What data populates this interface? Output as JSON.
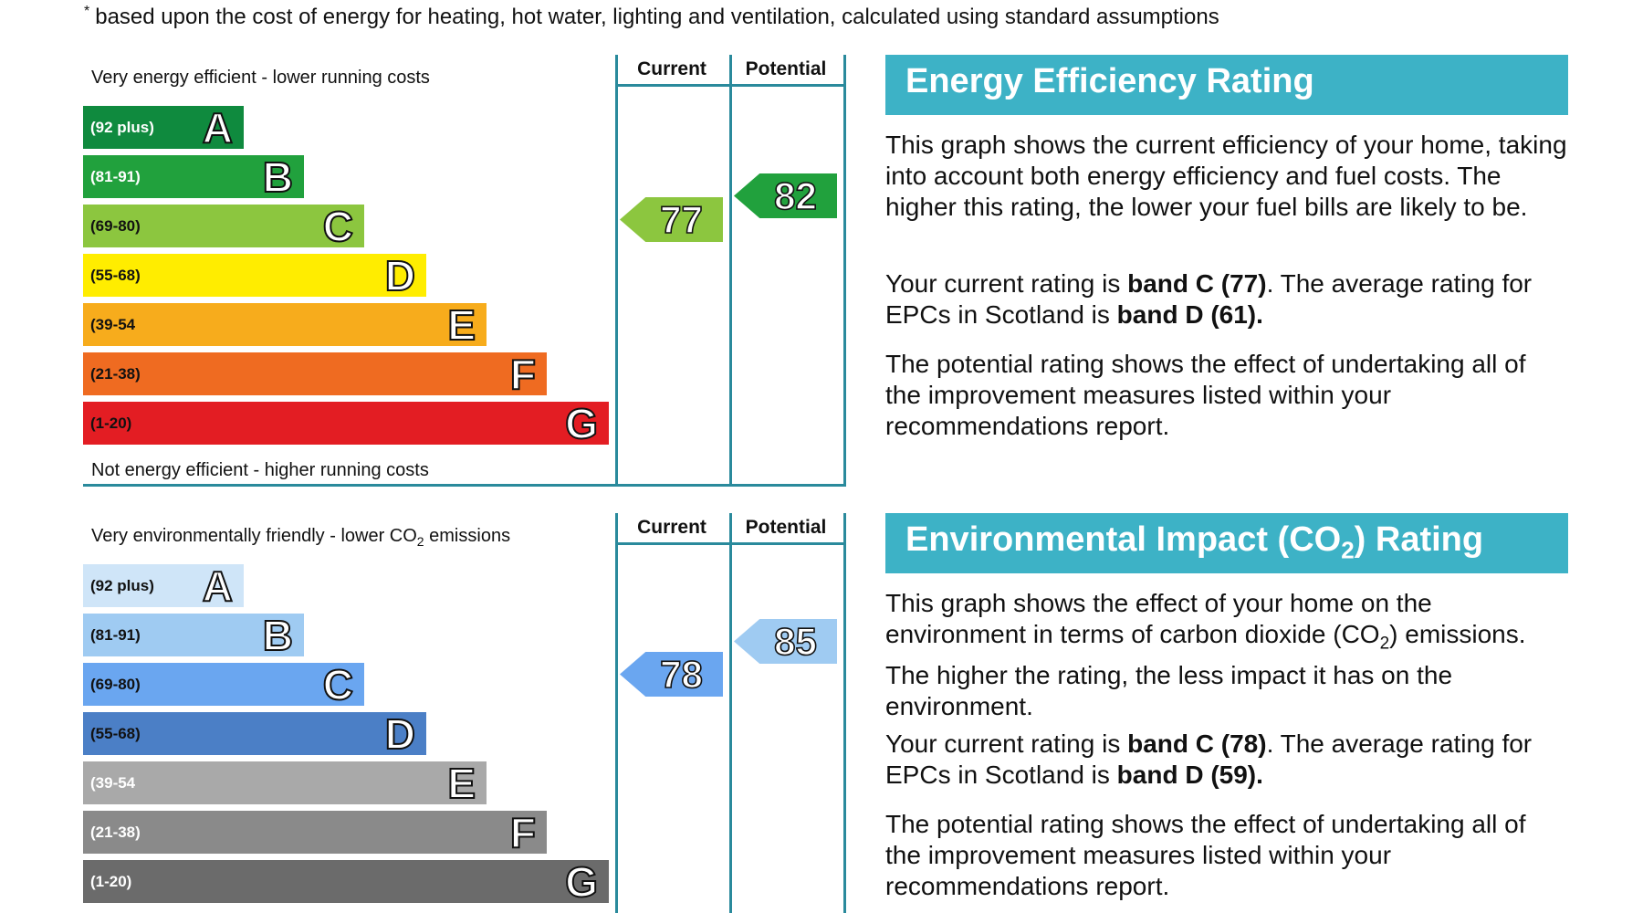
{
  "footnote": {
    "mark": "*",
    "text": "based upon the cost of energy for heating, hot water, lighting and ventilation, calculated using standard assumptions"
  },
  "colors": {
    "teal_line": "#2a8a9c",
    "header_bg": "#3db2c6",
    "eer": [
      "#0f8a3e",
      "#21a13d",
      "#8cc63f",
      "#ffed00",
      "#f7ac1c",
      "#ef6b21",
      "#e31d23"
    ],
    "ei": [
      "#cfe5f8",
      "#9fcbf2",
      "#6aa6f0",
      "#4b7fc6",
      "#a9a9a9",
      "#8a8a8a",
      "#6b6b6b"
    ]
  },
  "energy": {
    "top_note": "Very energy efficient - lower running costs",
    "bottom_note": "Not energy efficient - higher running costs",
    "col_current": "Current",
    "col_potential": "Potential",
    "bands": [
      {
        "range": "(92 plus)",
        "letter": "A"
      },
      {
        "range": "(81-91)",
        "letter": "B"
      },
      {
        "range": "(69-80)",
        "letter": "C"
      },
      {
        "range": "(55-68)",
        "letter": "D"
      },
      {
        "range": "(39-54",
        "letter": "E"
      },
      {
        "range": "(21-38)",
        "letter": "F"
      },
      {
        "range": "(1-20)",
        "letter": "G"
      }
    ],
    "current": "77",
    "potential": "82",
    "title": "Energy Efficiency Rating",
    "p1": "This graph shows the current efficiency of your home, taking into account both energy efficiency and fuel costs. The higher this rating, the lower your fuel bills are likely to be.",
    "p2_a": "Your current rating is ",
    "p2_b": "band C (77)",
    "p2_c": ". The average rating for EPCs in Scotland is ",
    "p2_d": "band D (61).",
    "p3": "The potential rating shows the effect of undertaking all of the improvement measures listed within your recommendations report."
  },
  "environment": {
    "top_note_a": "Very environmentally friendly - lower CO",
    "top_note_sub": "2",
    "top_note_b": " emissions",
    "col_current": "Current",
    "col_potential": "Potential",
    "bands": [
      {
        "range": "(92 plus)",
        "letter": "A"
      },
      {
        "range": "(81-91)",
        "letter": "B"
      },
      {
        "range": "(69-80)",
        "letter": "C"
      },
      {
        "range": "(55-68)",
        "letter": "D"
      },
      {
        "range": "(39-54",
        "letter": "E"
      },
      {
        "range": "(21-38)",
        "letter": "F"
      },
      {
        "range": "(1-20)",
        "letter": "G"
      }
    ],
    "current": "78",
    "potential": "85",
    "title_a": "Environmental Impact (CO",
    "title_sub": "2",
    "title_b": ") Rating",
    "p1_a": "This graph shows the effect of your home on the environment in terms of carbon dioxide (CO",
    "p1_sub": "2",
    "p1_b": ") emissions. The higher the rating, the less impact it has on the environment.",
    "p2_a": "Your current rating is ",
    "p2_b": "band C (78)",
    "p2_c": ". The average rating for EPCs in Scotland is ",
    "p2_d": "band D (59).",
    "p3": "The potential rating shows the effect of undertaking all of the improvement measures listed within your recommendations report."
  }
}
